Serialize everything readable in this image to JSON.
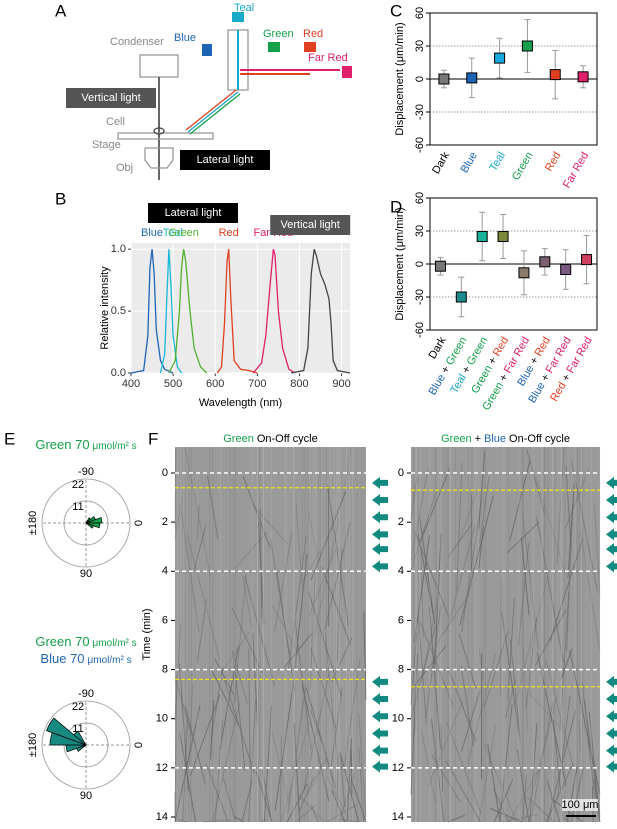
{
  "panel_labels": [
    "A",
    "B",
    "C",
    "D",
    "E",
    "F"
  ],
  "diagram": {
    "teal": "Teal",
    "blue": "Blue",
    "green": "Green",
    "red": "Red",
    "far_red": "Far Red",
    "condenser": "Condenser",
    "vertical": "Vertical light",
    "cell": "Cell",
    "stage": "Stage",
    "obj": "Obj",
    "lateral": "Lateral light"
  },
  "colors": {
    "Dark": "#000000",
    "Blue": "#1e64b4",
    "Teal": "#19a8c8",
    "Green": "#14a04a",
    "Red": "#e04020",
    "Far Red": "#e0206a"
  },
  "chart_data": [
    {
      "type": "errorbar",
      "ylabel": "Displacement (μm/min)",
      "categories": [
        [
          "Dark"
        ],
        [
          "Blue"
        ],
        [
          "Teal"
        ],
        [
          "Green"
        ],
        [
          "Red"
        ],
        [
          "Far Red"
        ]
      ],
      "values": [
        0,
        1,
        19,
        30,
        4,
        2
      ],
      "errors": [
        8,
        18,
        18,
        24,
        22,
        10
      ],
      "colors": [
        "#777777",
        "#1e64b4",
        "#19a8e0",
        "#14a04a",
        "#e04020",
        "#e0206a"
      ],
      "ylim": [
        -60,
        60
      ],
      "yticks": [
        -60,
        -30,
        0,
        30,
        60
      ],
      "ref_lines": [
        -30,
        30
      ]
    },
    {
      "type": "errorbar",
      "ylabel": "Displacement (μm/min)",
      "separator": "+",
      "categories": [
        [
          "Dark"
        ],
        [
          "Blue",
          "Green"
        ],
        [
          "Teal",
          "Green"
        ],
        [
          "Green",
          "Red"
        ],
        [
          "Green",
          "Far Red"
        ],
        [
          "Blue",
          "Red"
        ],
        [
          "Blue",
          "Far Red"
        ],
        [
          "Red",
          "Far Red"
        ]
      ],
      "values": [
        -2,
        -30,
        25,
        25,
        -8,
        2,
        -5,
        4
      ],
      "errors": [
        8,
        18,
        22,
        20,
        20,
        12,
        18,
        22
      ],
      "colors": [
        "#777777",
        "#1a8a8a",
        "#1bb09a",
        "#7a8a3a",
        "#8a7a6a",
        "#7a6070",
        "#7a5a80",
        "#d04060"
      ],
      "ylim": [
        -60,
        60
      ],
      "yticks": [
        -60,
        -30,
        0,
        30,
        60
      ],
      "ref_lines": [
        -30,
        30
      ]
    },
    {
      "type": "line",
      "xlabel": "Wavelength (nm)",
      "ylabel": "Relative intensity",
      "annotation": "Lateral light",
      "xlim": [
        400,
        920
      ],
      "xticks": [
        400,
        500,
        600,
        700,
        800,
        900
      ],
      "ylim": [
        0,
        1.05
      ],
      "yticks": [
        {
          "value": 0,
          "label": "0.0"
        },
        {
          "value": 0.5,
          "label": "0.5"
        },
        {
          "value": 1,
          "label": "1.0"
        }
      ],
      "grid": true,
      "series": [
        {
          "name": "Blue",
          "color": "#1e64b4",
          "x": [
            400,
            430,
            440,
            445,
            450,
            455,
            460,
            470,
            480,
            500
          ],
          "values": [
            0,
            0.02,
            0.3,
            0.85,
            1,
            0.8,
            0.35,
            0.1,
            0.03,
            0
          ]
        },
        {
          "name": "Teal",
          "color": "#19b8d8",
          "x": [
            470,
            480,
            485,
            490,
            495,
            500,
            510,
            520
          ],
          "values": [
            0,
            0.15,
            0.6,
            1,
            0.7,
            0.3,
            0.05,
            0
          ]
        },
        {
          "name": "Green",
          "color": "#50b030",
          "x": [
            490,
            505,
            515,
            520,
            525,
            530,
            540,
            550,
            565,
            580
          ],
          "values": [
            0,
            0.1,
            0.5,
            0.85,
            1,
            0.9,
            0.5,
            0.2,
            0.05,
            0
          ]
        },
        {
          "name": "Red",
          "color": "#e04020",
          "x": [
            605,
            615,
            622,
            628,
            632,
            637,
            645,
            660,
            680,
            700
          ],
          "values": [
            0,
            0.05,
            0.4,
            0.9,
            1,
            0.6,
            0.1,
            0.03,
            0.02,
            0
          ]
        },
        {
          "name": "Far Red",
          "color": "#e0206a",
          "x": [
            690,
            710,
            720,
            730,
            738,
            742,
            750,
            760,
            775,
            790
          ],
          "values": [
            0,
            0.08,
            0.3,
            0.7,
            1,
            0.95,
            0.5,
            0.2,
            0.03,
            0
          ]
        },
        {
          "name": "Vertical light",
          "color": "#444444",
          "x": [
            780,
            810,
            820,
            828,
            835,
            840,
            850,
            860,
            870,
            875,
            880,
            890,
            920
          ],
          "values": [
            0,
            0.02,
            0.2,
            0.8,
            1,
            0.95,
            0.8,
            0.72,
            0.6,
            0.4,
            0.1,
            0.02,
            0
          ]
        }
      ]
    },
    {
      "type": "rose",
      "title_lines": [
        [
          "Green 70",
          "μmol/m² s"
        ]
      ],
      "title_colors": [
        "#14a04a"
      ],
      "color": "#14a04a",
      "theta_bins": [
        -60,
        -40,
        -20,
        0,
        20,
        40
      ],
      "values": [
        3,
        5,
        8,
        7,
        4
      ],
      "rlim": [
        0,
        22
      ],
      "rticks": [
        11,
        22
      ],
      "theta_ticks": [
        -90,
        0,
        90,
        {
          "value": 180,
          "label": "±180"
        }
      ]
    },
    {
      "type": "rose",
      "title_lines": [
        [
          "Green 70",
          "μmol/m² s"
        ],
        [
          "Blue 70",
          "μmol/m² s"
        ]
      ],
      "title_colors": [
        "#14a04a",
        "#1e64b4"
      ],
      "color": "#168a80",
      "theta_bins": [
        140,
        160,
        180,
        200,
        220,
        240
      ],
      "values": [
        5,
        10,
        18,
        21,
        8
      ],
      "rlim": [
        0,
        22
      ],
      "rticks": [
        11,
        22
      ],
      "theta_ticks": [
        -90,
        0,
        90,
        {
          "value": 180,
          "label": "±180"
        }
      ]
    },
    {
      "type": "kymograph",
      "title_parts": [
        "Green",
        "On-Off cycle"
      ],
      "ylabel": "Time (min)",
      "ylim": [
        0,
        14
      ],
      "yticks": [
        0,
        2,
        4,
        6,
        8,
        10,
        12,
        14
      ],
      "white_lines": [
        0,
        4,
        8,
        12
      ],
      "yellow_lines": [
        0.6,
        8.4
      ],
      "stimuli": [
        0.4,
        1.1,
        1.8,
        2.5,
        3.1,
        3.8,
        8.5,
        9.2,
        9.9,
        10.6,
        11.3,
        11.95
      ]
    },
    {
      "type": "kymograph",
      "title_parts": [
        "Green",
        "+",
        "Blue",
        "On-Off cycle"
      ],
      "ylim": [
        0,
        14
      ],
      "yticks": [
        0,
        2,
        4,
        6,
        8,
        10,
        12,
        14
      ],
      "white_lines": [
        0,
        4,
        8,
        12
      ],
      "yellow_lines": [
        0.7,
        8.7
      ],
      "stimuli": [
        0.4,
        1.1,
        1.8,
        2.5,
        3.1,
        3.8,
        8.5,
        9.2,
        9.9,
        10.6,
        11.3,
        11.95
      ],
      "scale_bar": "100 μm"
    }
  ]
}
